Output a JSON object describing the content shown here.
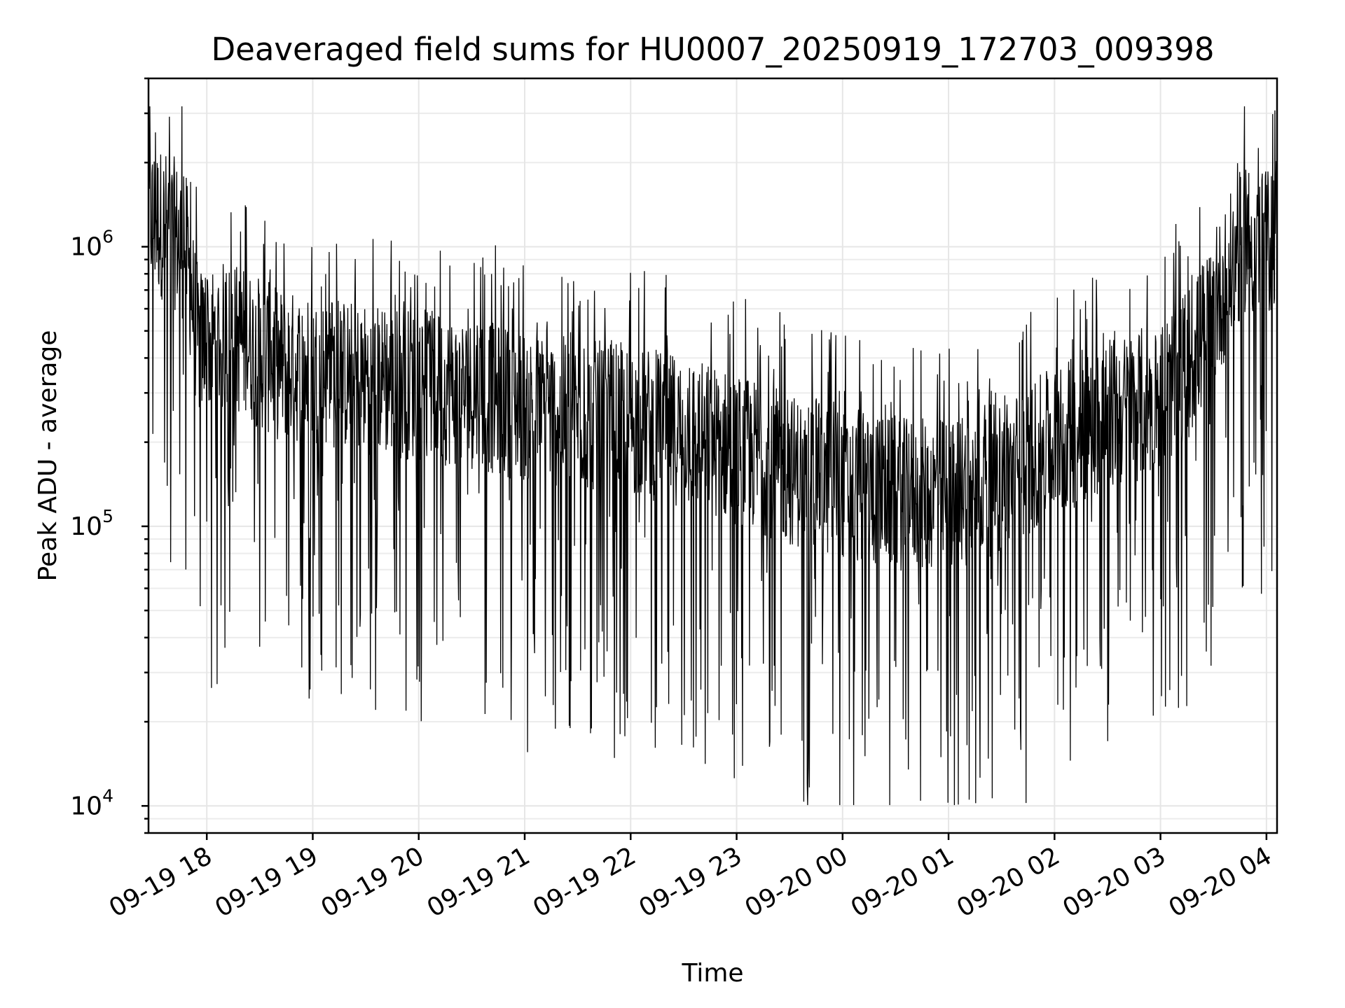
{
  "chart_data": {
    "type": "line",
    "title": "Deaveraged field sums for HU0007_20250919_172703_009398",
    "xlabel": "Time",
    "ylabel": "Peak ADU - average",
    "xscale": "time",
    "yscale": "log",
    "xlim": [
      "2025-09-19 17:27",
      "2025-09-20 04:06"
    ],
    "ylim": [
      8000,
      4000000
    ],
    "x_ticks": [
      {
        "time": "2025-09-19 18:00",
        "label": "09-19 18"
      },
      {
        "time": "2025-09-19 19:00",
        "label": "09-19 19"
      },
      {
        "time": "2025-09-19 20:00",
        "label": "09-19 20"
      },
      {
        "time": "2025-09-19 21:00",
        "label": "09-19 21"
      },
      {
        "time": "2025-09-19 22:00",
        "label": "09-19 22"
      },
      {
        "time": "2025-09-19 23:00",
        "label": "09-19 23"
      },
      {
        "time": "2025-09-20 00:00",
        "label": "09-20 00"
      },
      {
        "time": "2025-09-20 01:00",
        "label": "09-20 01"
      },
      {
        "time": "2025-09-20 02:00",
        "label": "09-20 02"
      },
      {
        "time": "2025-09-20 03:00",
        "label": "09-20 03"
      },
      {
        "time": "2025-09-20 04:00",
        "label": "09-20 04"
      }
    ],
    "y_ticks": [
      {
        "value": 10000,
        "base": "10",
        "exp": "4"
      },
      {
        "value": 100000,
        "base": "10",
        "exp": "5"
      },
      {
        "value": 1000000,
        "base": "10",
        "exp": "6"
      }
    ],
    "grid": true,
    "line_color": "#000000",
    "series": [
      {
        "noise_amplitude_decades": 0.55,
        "points": [
          {
            "t": "2025-09-19 17:27",
            "v": 1300000
          },
          {
            "t": "2025-09-19 17:40",
            "v": 1150000
          },
          {
            "t": "2025-09-19 17:48",
            "v": 1000000
          },
          {
            "t": "2025-09-19 17:55",
            "v": 450000
          },
          {
            "t": "2025-09-19 18:15",
            "v": 480000
          },
          {
            "t": "2025-09-19 18:40",
            "v": 380000
          },
          {
            "t": "2025-09-19 19:00",
            "v": 360000
          },
          {
            "t": "2025-09-19 19:30",
            "v": 340000
          },
          {
            "t": "2025-09-19 20:00",
            "v": 320000
          },
          {
            "t": "2025-09-19 20:30",
            "v": 300000
          },
          {
            "t": "2025-09-19 21:00",
            "v": 270000
          },
          {
            "t": "2025-09-19 21:30",
            "v": 250000
          },
          {
            "t": "2025-09-19 22:00",
            "v": 240000
          },
          {
            "t": "2025-09-19 22:30",
            "v": 220000
          },
          {
            "t": "2025-09-19 23:00",
            "v": 190000
          },
          {
            "t": "2025-09-19 23:30",
            "v": 160000
          },
          {
            "t": "2025-09-20 00:00",
            "v": 140000
          },
          {
            "t": "2025-09-20 00:30",
            "v": 130000
          },
          {
            "t": "2025-09-20 01:00",
            "v": 130000
          },
          {
            "t": "2025-09-20 01:30",
            "v": 150000
          },
          {
            "t": "2025-09-20 02:00",
            "v": 200000
          },
          {
            "t": "2025-09-20 02:30",
            "v": 250000
          },
          {
            "t": "2025-09-20 03:00",
            "v": 290000
          },
          {
            "t": "2025-09-20 03:20",
            "v": 420000
          },
          {
            "t": "2025-09-20 03:35",
            "v": 700000
          },
          {
            "t": "2025-09-20 03:48",
            "v": 1100000
          },
          {
            "t": "2025-09-20 03:58",
            "v": 950000
          },
          {
            "t": "2025-09-20 04:06",
            "v": 1200000
          }
        ]
      }
    ]
  }
}
